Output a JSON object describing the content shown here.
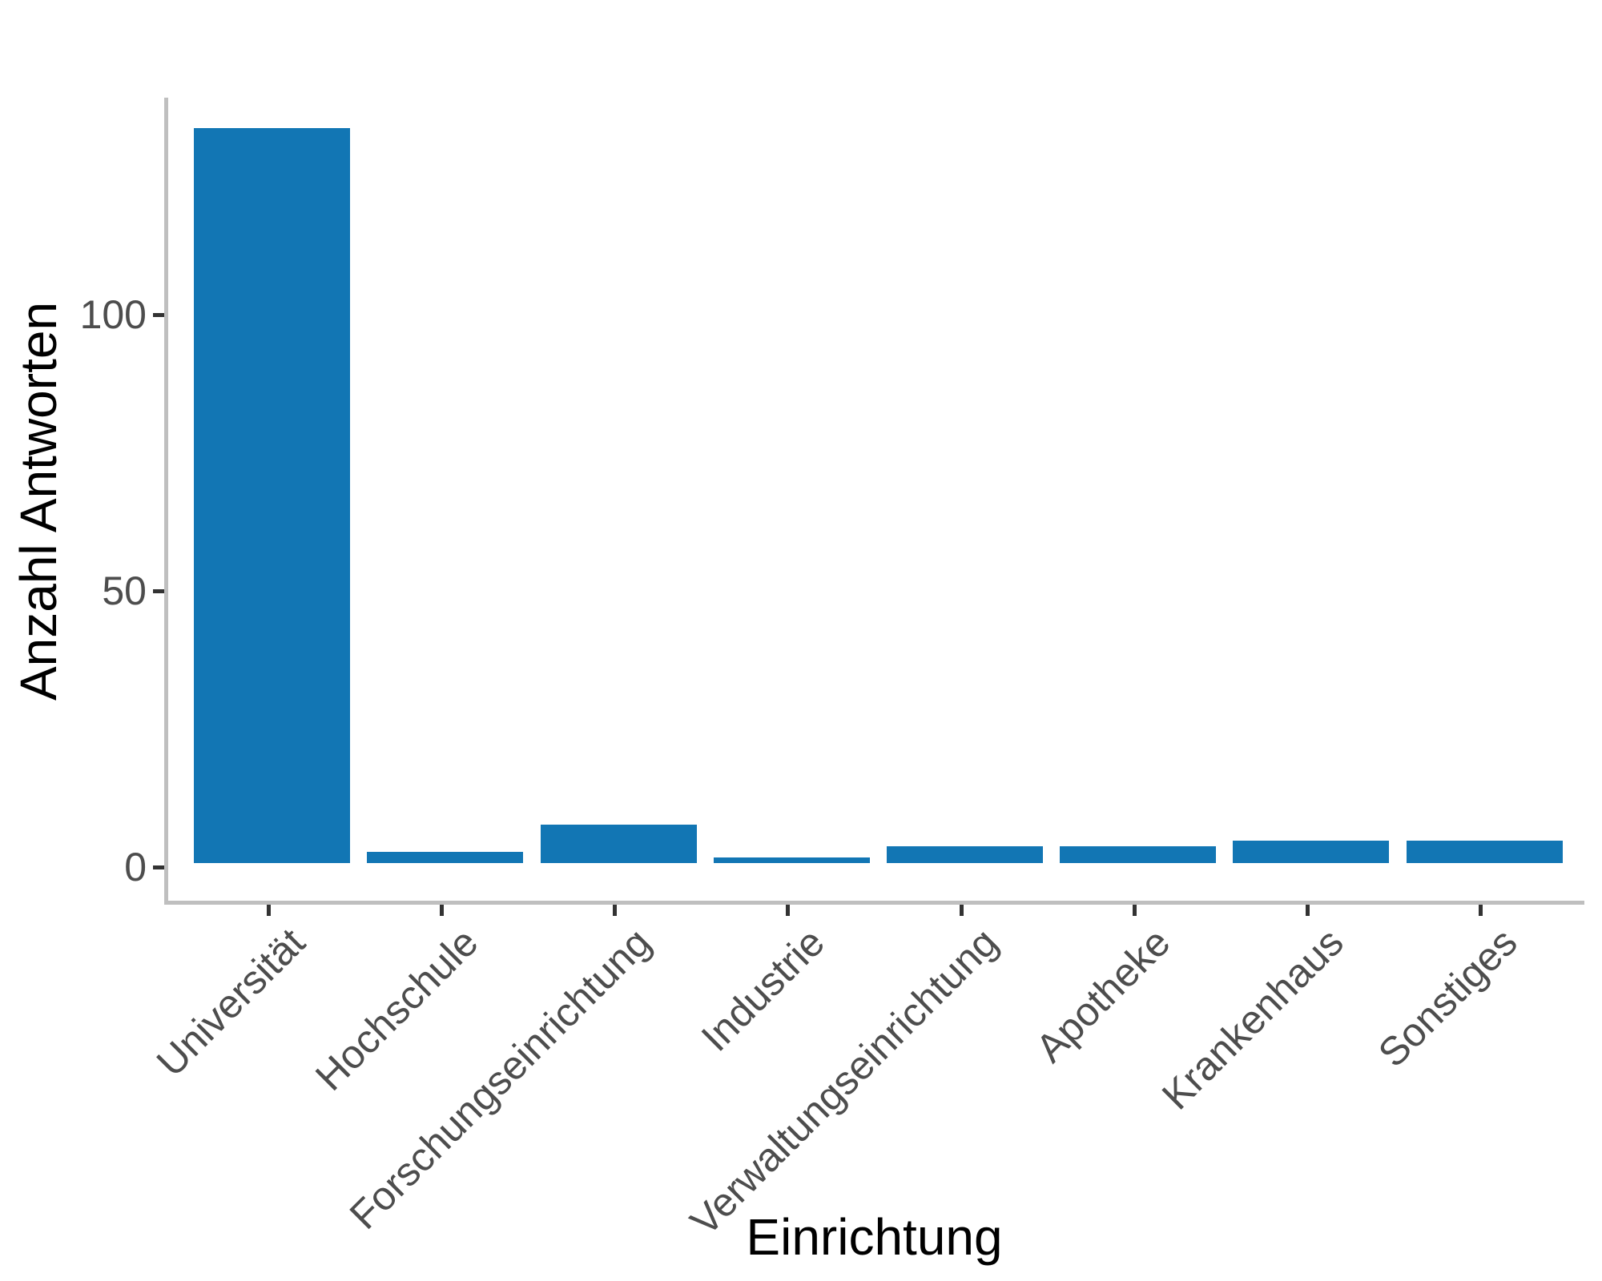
{
  "chart_data": {
    "type": "bar",
    "title": "",
    "categories": [
      "Universität",
      "Hochschule",
      "Forschungseinrichtung",
      "Industrie",
      "Verwaltungseinrichtung",
      "Apotheke",
      "Krankenhaus",
      "Sonstiges"
    ],
    "values": [
      133,
      2,
      7,
      1,
      3,
      3,
      4,
      4
    ],
    "xlabel": "Einrichtung",
    "ylabel": "Anzahl Antworten",
    "ylim": [
      0,
      140
    ],
    "yticks": [
      0,
      50,
      100
    ],
    "grid": false,
    "legend": "none",
    "x_tick_angle": 45,
    "colors": {
      "bar_fill": "#1276b4",
      "axis_line": "#bfbfbf",
      "tick_mark": "#333333",
      "tick_label": "#4d4d4d",
      "axis_title": "#000000",
      "background": "#ffffff"
    }
  }
}
